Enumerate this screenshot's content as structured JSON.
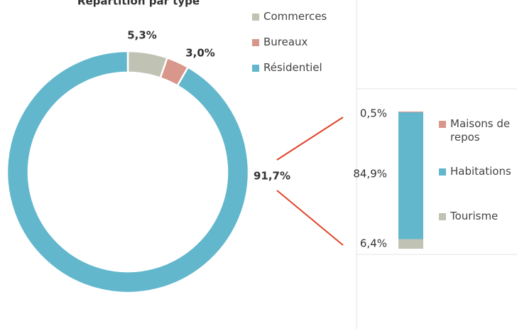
{
  "chart_data": [
    {
      "type": "donut",
      "title": "Répartition par type",
      "categories": [
        "Commerces",
        "Bureaux",
        "Résidentiel"
      ],
      "values": [
        5.3,
        3.0,
        91.7
      ],
      "value_labels": [
        "5,3%",
        "3,0%",
        "91,7%"
      ],
      "colors": [
        "#c0c2b3",
        "#d9968a",
        "#62b7cc"
      ]
    },
    {
      "type": "stacked-bar",
      "series": [
        {
          "name": "Tourisme",
          "color": "#c0c2b3",
          "values": [
            6.4
          ],
          "value_labels": [
            "6,4%"
          ]
        },
        {
          "name": "Habitations",
          "color": "#62b7cc",
          "values": [
            84.9
          ],
          "value_labels": [
            "84,9%"
          ]
        },
        {
          "name": "Maisons de repos",
          "color": "#d9968a",
          "values": [
            0.5
          ],
          "value_labels": [
            "0,5%"
          ]
        }
      ]
    }
  ]
}
